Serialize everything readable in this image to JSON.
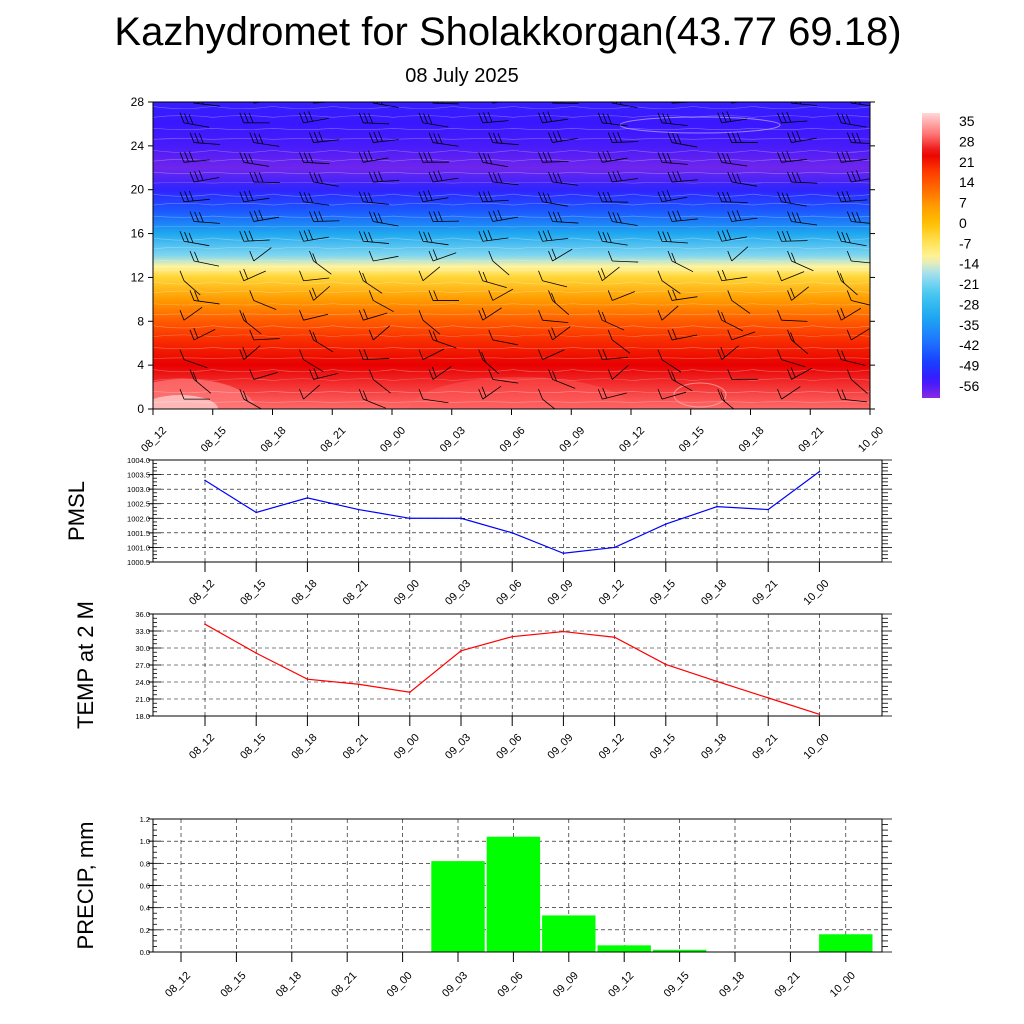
{
  "header": {
    "title": "Kazhydromet for Sholakkorgan(43.77 69.18)",
    "date": "08 July 2025"
  },
  "colors": {
    "pmsl_line": "#0000ff",
    "temp_line": "#ff0000",
    "precip_bar": "#00ff00",
    "grid": "#000000"
  },
  "chart_data": [
    {
      "type": "heatmap",
      "title": "",
      "x": [
        "08_12",
        "08_15",
        "08_18",
        "08_21",
        "09_00",
        "09_03",
        "09_06",
        "09_09",
        "09_12",
        "09_15",
        "09_18",
        "09_21",
        "10_00"
      ],
      "yticks": [
        0,
        4,
        8,
        12,
        16,
        20,
        24,
        28
      ],
      "ylim": [
        0,
        28
      ],
      "colorbar": {
        "labels": [
          "35",
          "28",
          "21",
          "14",
          "7",
          "0",
          "-7",
          "-14",
          "-21",
          "-28",
          "-35",
          "-42",
          "-49",
          "-56"
        ],
        "range": [
          -60,
          38
        ]
      },
      "field_profile": [
        {
          "y": 0,
          "value": 30
        },
        {
          "y": 2,
          "value": 27
        },
        {
          "y": 4,
          "value": 24
        },
        {
          "y": 6,
          "value": 20
        },
        {
          "y": 8,
          "value": 14
        },
        {
          "y": 10,
          "value": 6
        },
        {
          "y": 12,
          "value": -4
        },
        {
          "y": 13,
          "value": -12
        },
        {
          "y": 14,
          "value": -20
        },
        {
          "y": 16,
          "value": -32
        },
        {
          "y": 18,
          "value": -44
        },
        {
          "y": 20,
          "value": -52
        },
        {
          "y": 22,
          "value": -58
        },
        {
          "y": 24,
          "value": -55
        },
        {
          "y": 26,
          "value": -54
        },
        {
          "y": 28,
          "value": -53
        }
      ],
      "grid": false
    },
    {
      "type": "line",
      "ylabel": "PMSL",
      "x": [
        "08_12",
        "08_15",
        "08_18",
        "08_21",
        "09_00",
        "09_03",
        "09_06",
        "09_09",
        "09_12",
        "09_15",
        "09_18",
        "09_21",
        "10_00"
      ],
      "yticks": [
        "1000.5",
        "1001.0",
        "1001.5",
        "1002.0",
        "1002.5",
        "1003.0",
        "1003.5",
        "1004.0"
      ],
      "ylim": [
        1000.5,
        1004.0
      ],
      "series": [
        {
          "values": [
            1003.3,
            1002.2,
            1002.7,
            1002.3,
            1002.0,
            1002.0,
            1001.5,
            1000.8,
            1001.0,
            1001.8,
            1002.4,
            1002.3,
            1003.6
          ]
        }
      ],
      "grid": true
    },
    {
      "type": "line",
      "ylabel": "TEMP at 2 M",
      "x": [
        "08_12",
        "08_15",
        "08_18",
        "08_21",
        "09_00",
        "09_03",
        "09_06",
        "09_09",
        "09_12",
        "09_15",
        "09_18",
        "09_21",
        "10_00"
      ],
      "yticks": [
        "18.0",
        "21.0",
        "24.0",
        "27.0",
        "30.0",
        "33.0",
        "36.0"
      ],
      "ylim": [
        18,
        36
      ],
      "series": [
        {
          "values": [
            34.2,
            29.1,
            24.5,
            23.6,
            22.2,
            29.5,
            32.0,
            32.9,
            31.9,
            27.1,
            24.1,
            21.2,
            18.3
          ]
        }
      ],
      "grid": true
    },
    {
      "type": "bar",
      "ylabel": "PRECIP, mm",
      "categories": [
        "08_12",
        "08_15",
        "08_18",
        "08_21",
        "09_00",
        "09_03",
        "09_06",
        "09_09",
        "09_12",
        "09_15",
        "09_18",
        "09_21",
        "10_00"
      ],
      "values": [
        0,
        0,
        0,
        0,
        0,
        0.82,
        1.04,
        0.33,
        0.06,
        0.02,
        0,
        0,
        0.16
      ],
      "yticks": [
        "0.0",
        "0.2",
        "0.4",
        "0.6",
        "0.8",
        "1.0",
        "1.2"
      ],
      "ylim": [
        0,
        1.2
      ],
      "grid": true
    }
  ]
}
